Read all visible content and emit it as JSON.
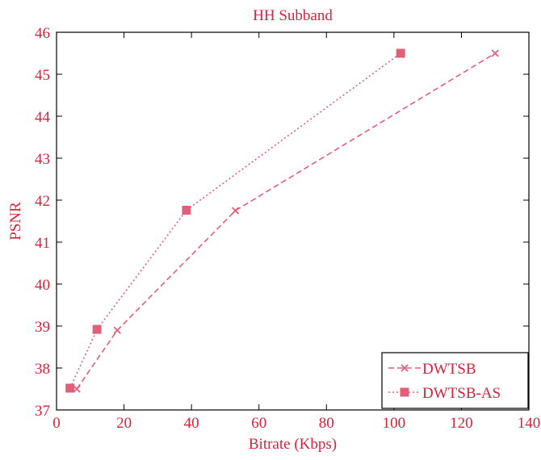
{
  "chart_data": {
    "type": "line",
    "title": "HH Subband",
    "xlabel": "Bitrate (Kbps)",
    "ylabel": "PSNR",
    "xlim": [
      0,
      140
    ],
    "ylim": [
      37,
      46
    ],
    "x_ticks": [
      0,
      20,
      40,
      60,
      80,
      100,
      120,
      140
    ],
    "y_ticks": [
      37,
      38,
      39,
      40,
      41,
      42,
      43,
      44,
      45,
      46
    ],
    "grid": false,
    "legend_position": "bottom-right",
    "series": [
      {
        "name": "DWTSB",
        "line_style": "dashed",
        "marker": "x",
        "color": "#e0607a",
        "x": [
          6,
          18,
          53,
          130
        ],
        "y": [
          37.5,
          38.9,
          41.75,
          45.5
        ]
      },
      {
        "name": "DWTSB-AS",
        "line_style": "dotted",
        "marker": "square",
        "color": "#e0607a",
        "x": [
          4,
          12,
          38.5,
          102
        ],
        "y": [
          37.52,
          38.92,
          41.76,
          45.5
        ]
      }
    ]
  },
  "colors": {
    "text": "#d6233a",
    "series": "#e0607a",
    "axes": "#000000"
  }
}
